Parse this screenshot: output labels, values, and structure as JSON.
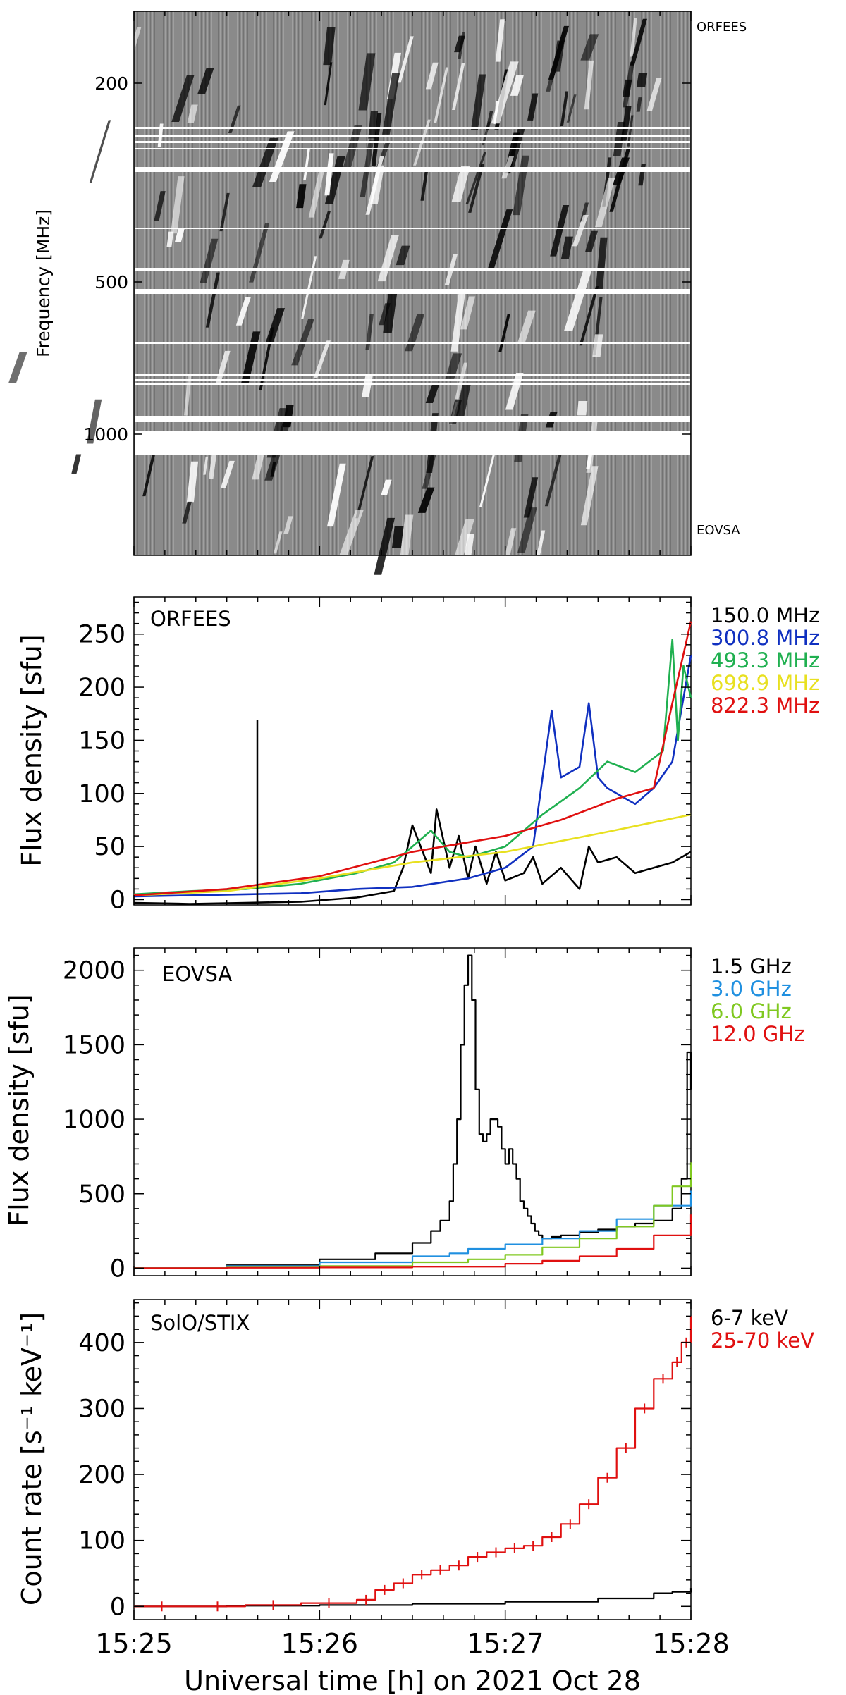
{
  "page": {
    "xlabel": "Universal time [h] on 2021 Oct 28"
  },
  "chart_data": [
    {
      "type": "heatmap",
      "label_top": "ORFEES",
      "label_bottom": "EOVSA",
      "ylabel": "Frequency [MHz]",
      "y_ticks": [
        "200",
        "500",
        "1000"
      ],
      "x_range": [
        "15:25",
        "15:28"
      ],
      "colormap": "grayscale difference spectrum"
    },
    {
      "type": "line",
      "panel_label": "ORFEES",
      "ylabel": "Flux density [sfu]",
      "ylim": [
        -5,
        285
      ],
      "y_ticks": [
        0,
        50,
        100,
        150,
        200,
        250
      ],
      "x_range_minutes": [
        0,
        3
      ],
      "series": [
        {
          "name": "150.0 MHz",
          "color": "#000000",
          "x": [
            0,
            0.3,
            0.6,
            0.9,
            1.2,
            1.4,
            1.45,
            1.5,
            1.6,
            1.63,
            1.7,
            1.75,
            1.8,
            1.84,
            1.9,
            1.95,
            2.0,
            2.1,
            2.15,
            2.2,
            2.3,
            2.4,
            2.45,
            2.5,
            2.6,
            2.7,
            2.8,
            2.9,
            3.0
          ],
          "y": [
            -3,
            -4,
            -3,
            -2,
            2,
            8,
            30,
            70,
            25,
            85,
            30,
            60,
            20,
            50,
            15,
            45,
            18,
            25,
            40,
            15,
            30,
            10,
            50,
            35,
            40,
            25,
            30,
            35,
            45
          ]
        },
        {
          "name": "300.8 MHz",
          "color": "#1030c0",
          "x": [
            0,
            0.3,
            0.6,
            0.9,
            1.2,
            1.5,
            1.8,
            2.0,
            2.15,
            2.25,
            2.3,
            2.35,
            2.4,
            2.45,
            2.5,
            2.55,
            2.6,
            2.7,
            2.8,
            2.9,
            3.0
          ],
          "y": [
            3,
            4,
            5,
            6,
            10,
            12,
            20,
            30,
            50,
            178,
            115,
            120,
            125,
            185,
            115,
            105,
            100,
            90,
            105,
            130,
            230
          ]
        },
        {
          "name": "493.3 MHz",
          "color": "#20b050",
          "x": [
            0,
            0.3,
            0.6,
            0.9,
            1.2,
            1.4,
            1.5,
            1.6,
            1.7,
            1.8,
            2.0,
            2.2,
            2.4,
            2.55,
            2.7,
            2.85,
            2.9,
            2.93,
            2.96,
            3.0
          ],
          "y": [
            5,
            8,
            10,
            15,
            25,
            35,
            50,
            65,
            45,
            40,
            50,
            80,
            105,
            130,
            120,
            140,
            245,
            150,
            220,
            190
          ]
        },
        {
          "name": "698.9 MHz",
          "color": "#e8e020",
          "x": [
            0,
            0.5,
            1.0,
            1.5,
            2.0,
            2.5,
            3.0
          ],
          "y": [
            4,
            8,
            20,
            35,
            45,
            62,
            80
          ]
        },
        {
          "name": "822.3 MHz",
          "color": "#e01010",
          "x": [
            0,
            0.5,
            1.0,
            1.5,
            2.0,
            2.3,
            2.6,
            2.8,
            2.9,
            3.0
          ],
          "y": [
            4,
            10,
            22,
            45,
            60,
            75,
            95,
            105,
            185,
            262
          ]
        }
      ]
    },
    {
      "type": "line",
      "panel_label": "EOVSA",
      "ylabel": "Flux density [sfu]",
      "ylim": [
        -50,
        2150
      ],
      "y_ticks": [
        0,
        500,
        1000,
        1500,
        2000
      ],
      "x_range_minutes": [
        0,
        3
      ],
      "series": [
        {
          "name": "1.5 GHz",
          "color": "#000000",
          "x": [
            0,
            0.5,
            1.0,
            1.3,
            1.5,
            1.6,
            1.65,
            1.7,
            1.72,
            1.74,
            1.76,
            1.78,
            1.8,
            1.82,
            1.84,
            1.86,
            1.88,
            1.9,
            1.92,
            1.94,
            1.96,
            1.98,
            2.0,
            2.02,
            2.04,
            2.06,
            2.08,
            2.1,
            2.12,
            2.14,
            2.16,
            2.18,
            2.2,
            2.25,
            2.3,
            2.4,
            2.5,
            2.6,
            2.7,
            2.8,
            2.9,
            2.95,
            2.98,
            3.0
          ],
          "y": [
            0,
            20,
            60,
            100,
            170,
            250,
            320,
            450,
            700,
            1000,
            1500,
            1900,
            2100,
            1800,
            1200,
            900,
            850,
            900,
            1000,
            1000,
            950,
            800,
            700,
            800,
            700,
            600,
            450,
            400,
            350,
            300,
            250,
            220,
            200,
            210,
            220,
            240,
            260,
            280,
            300,
            320,
            400,
            600,
            1450,
            1200
          ]
        },
        {
          "name": "3.0 GHz",
          "color": "#2090e0",
          "x": [
            0,
            0.5,
            1.0,
            1.5,
            1.7,
            1.8,
            2.0,
            2.2,
            2.4,
            2.6,
            2.8,
            3.0
          ],
          "y": [
            0,
            15,
            40,
            80,
            100,
            130,
            160,
            200,
            250,
            330,
            420,
            520
          ]
        },
        {
          "name": "6.0 GHz",
          "color": "#80c820",
          "x": [
            0,
            0.5,
            1.0,
            1.5,
            1.8,
            2.0,
            2.2,
            2.4,
            2.6,
            2.8,
            2.9,
            3.0
          ],
          "y": [
            0,
            5,
            15,
            40,
            60,
            90,
            140,
            200,
            280,
            420,
            550,
            710
          ]
        },
        {
          "name": "12.0 GHz",
          "color": "#e01010",
          "x": [
            0,
            0.5,
            1.0,
            1.5,
            2.0,
            2.2,
            2.4,
            2.6,
            2.8,
            3.0
          ],
          "y": [
            0,
            3,
            5,
            10,
            30,
            50,
            80,
            130,
            220,
            360
          ]
        }
      ]
    },
    {
      "type": "line",
      "panel_label": "SolO/STIX",
      "ylabel": "Count rate [s⁻¹ keV⁻¹]",
      "ylim": [
        -20,
        465
      ],
      "y_ticks": [
        0,
        100,
        200,
        300,
        400
      ],
      "x_range_minutes": [
        0,
        3
      ],
      "x_ticks": [
        "15:25",
        "15:26",
        "15:27",
        "15:28"
      ],
      "series": [
        {
          "name": "6-7 keV",
          "color": "#000000",
          "x": [
            0,
            0.5,
            1.0,
            1.5,
            2.0,
            2.5,
            2.8,
            2.9,
            3.0
          ],
          "y": [
            0,
            1,
            2,
            4,
            7,
            12,
            20,
            22,
            28
          ]
        },
        {
          "name": "25-70 keV",
          "color": "#e01010",
          "x": [
            0,
            0.3,
            0.6,
            0.9,
            1.2,
            1.3,
            1.4,
            1.5,
            1.6,
            1.7,
            1.8,
            1.9,
            2.0,
            2.1,
            2.2,
            2.3,
            2.4,
            2.5,
            2.6,
            2.7,
            2.8,
            2.9,
            2.95,
            3.0
          ],
          "y": [
            0,
            0,
            2,
            5,
            10,
            25,
            35,
            48,
            55,
            62,
            75,
            82,
            88,
            92,
            105,
            125,
            155,
            195,
            240,
            300,
            345,
            370,
            400,
            440
          ]
        }
      ]
    }
  ]
}
